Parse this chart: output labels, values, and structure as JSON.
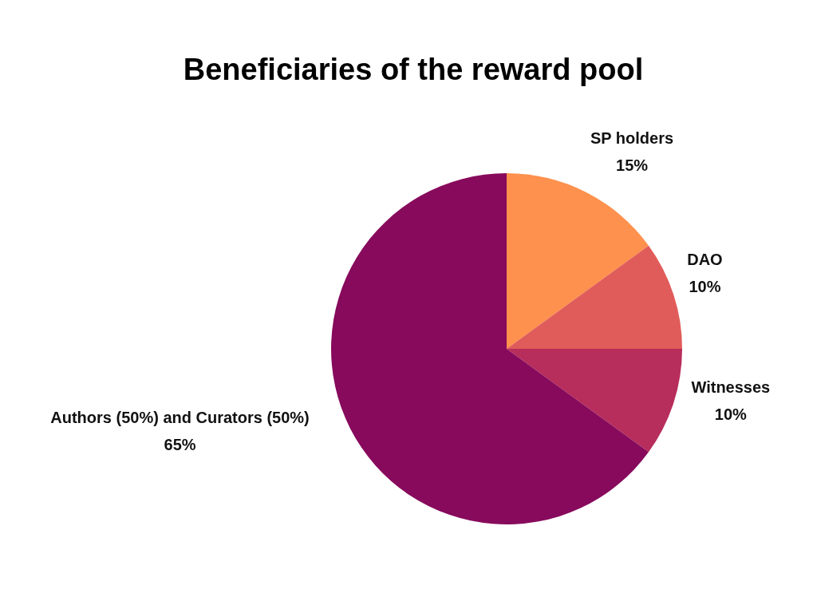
{
  "chart_data": {
    "type": "pie",
    "title": "Beneficiaries of the reward pool",
    "categories": [
      "SP holders",
      "DAO",
      "Witnesses",
      "Authors (50%) and Curators (50%)"
    ],
    "values": [
      15,
      10,
      10,
      65
    ],
    "colors": [
      "#fd914d",
      "#e05c5a",
      "#b72d5c",
      "#870a5c"
    ],
    "value_labels": [
      "15%",
      "10%",
      "10%",
      "65%"
    ]
  }
}
